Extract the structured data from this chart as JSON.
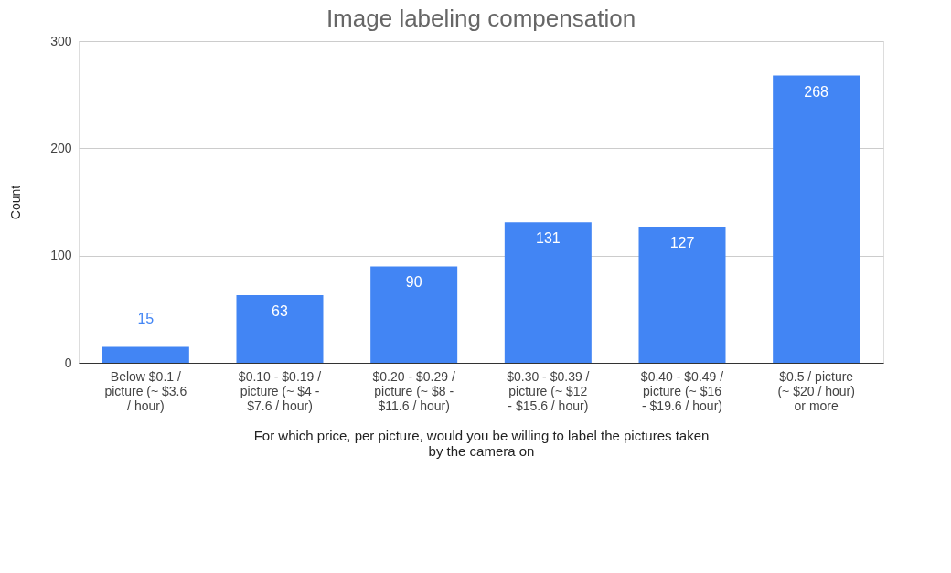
{
  "chart_data": {
    "type": "bar",
    "title": "Image labeling compensation",
    "xlabel": "For which price, per picture, would you be willing to label the pictures taken by the camera on",
    "ylabel": "Count",
    "categories": [
      "Below  $0.1 / picture (~ $3.6 / hour)",
      "$0.10 - $0.19 / picture (~ $4 - $7.6 / hour)",
      "$0.20 - $0.29 / picture (~ $8 - $11.6 / hour)",
      "$0.30 - $0.39 / picture (~ $12 - $15.6 / hour)",
      "$0.40 - $0.49 / picture  (~ $16 - $19.6 / hour)",
      "$0.5 / picture (~ $20 / hour) or more"
    ],
    "values": [
      15,
      63,
      90,
      131,
      127,
      268
    ],
    "color": "#4285f4",
    "ylim": [
      0,
      300
    ],
    "yticks": [
      0,
      100,
      200,
      300
    ],
    "grid": "y",
    "data_labels": true
  }
}
